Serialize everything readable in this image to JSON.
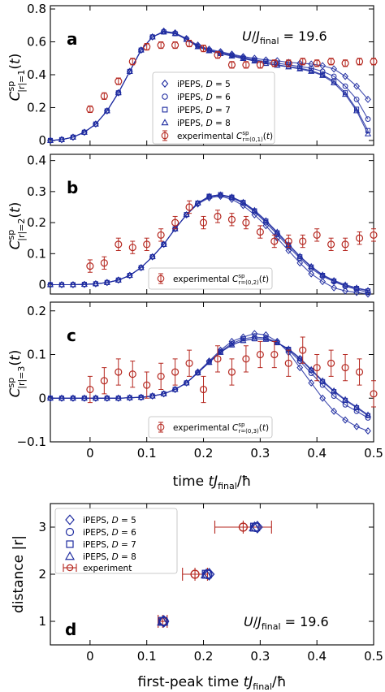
{
  "colors": {
    "ipeps": "#1f2ca0",
    "experiment": "#b5271f"
  },
  "annotation": "U/J_final = 19.6",
  "chart_data": [
    {
      "type": "scatter",
      "panel": "a",
      "ylabel": "C^sp_|r|=1(t)",
      "xlim": [
        -0.07,
        0.5
      ],
      "ylim": [
        -0.03,
        0.82
      ],
      "xticks": [
        0,
        0.1,
        0.2,
        0.3,
        0.4,
        0.5
      ],
      "yticks": [
        0,
        0.2,
        0.4,
        0.6,
        0.8
      ],
      "x_tick_labels_shown": false,
      "legend": [
        "iPEPS, D = 5",
        "iPEPS, D = 6",
        "iPEPS, D = 7",
        "iPEPS, D = 8",
        "experimental C^sp_r=(0,1)(t)"
      ],
      "ipeps": {
        "x": [
          -0.07,
          -0.05,
          -0.03,
          -0.01,
          0.01,
          0.03,
          0.05,
          0.07,
          0.09,
          0.11,
          0.13,
          0.15,
          0.17,
          0.19,
          0.21,
          0.23,
          0.25,
          0.27,
          0.29,
          0.31,
          0.33,
          0.35,
          0.37,
          0.39,
          0.41,
          0.43,
          0.45,
          0.47,
          0.49
        ],
        "D5": [
          0,
          0.005,
          0.02,
          0.05,
          0.1,
          0.18,
          0.29,
          0.42,
          0.55,
          0.63,
          0.665,
          0.655,
          0.62,
          0.58,
          0.555,
          0.54,
          0.525,
          0.51,
          0.5,
          0.49,
          0.485,
          0.475,
          0.47,
          0.465,
          0.455,
          0.435,
          0.39,
          0.33,
          0.25
        ],
        "D6": [
          0,
          0.005,
          0.02,
          0.05,
          0.1,
          0.18,
          0.29,
          0.42,
          0.55,
          0.63,
          0.662,
          0.652,
          0.617,
          0.575,
          0.55,
          0.535,
          0.52,
          0.505,
          0.49,
          0.48,
          0.47,
          0.46,
          0.45,
          0.44,
          0.42,
          0.39,
          0.33,
          0.25,
          0.13
        ],
        "D7": [
          0,
          0.005,
          0.02,
          0.05,
          0.1,
          0.18,
          0.29,
          0.42,
          0.55,
          0.63,
          0.66,
          0.65,
          0.615,
          0.572,
          0.547,
          0.53,
          0.515,
          0.5,
          0.485,
          0.47,
          0.46,
          0.45,
          0.44,
          0.425,
          0.4,
          0.36,
          0.29,
          0.19,
          0.06
        ],
        "D8": [
          0,
          0.005,
          0.02,
          0.05,
          0.1,
          0.18,
          0.29,
          0.42,
          0.55,
          0.63,
          0.66,
          0.65,
          0.615,
          0.57,
          0.545,
          0.528,
          0.513,
          0.498,
          0.483,
          0.468,
          0.457,
          0.447,
          0.435,
          0.42,
          0.395,
          0.35,
          0.28,
          0.18,
          0.04
        ]
      },
      "experiment": {
        "x": [
          0,
          0.025,
          0.05,
          0.075,
          0.1,
          0.125,
          0.15,
          0.175,
          0.2,
          0.225,
          0.25,
          0.275,
          0.3,
          0.325,
          0.35,
          0.375,
          0.4,
          0.425,
          0.45,
          0.475,
          0.5
        ],
        "y": [
          0.19,
          0.27,
          0.36,
          0.48,
          0.57,
          0.58,
          0.58,
          0.59,
          0.56,
          0.52,
          0.46,
          0.46,
          0.46,
          0.47,
          0.47,
          0.48,
          0.47,
          0.48,
          0.47,
          0.48,
          0.48
        ],
        "err": [
          0.02,
          0.02,
          0.02,
          0.02,
          0.02,
          0.02,
          0.02,
          0.02,
          0.02,
          0.02,
          0.02,
          0.02,
          0.02,
          0.02,
          0.02,
          0.02,
          0.02,
          0.02,
          0.02,
          0.02,
          0.02
        ]
      }
    },
    {
      "type": "scatter",
      "panel": "b",
      "ylabel": "C^sp_|r|=2(t)",
      "xlim": [
        -0.07,
        0.5
      ],
      "ylim": [
        -0.03,
        0.42
      ],
      "xticks": [
        0,
        0.1,
        0.2,
        0.3,
        0.4,
        0.5
      ],
      "yticks": [
        0,
        0.1,
        0.2,
        0.3,
        0.4
      ],
      "x_tick_labels_shown": false,
      "legend": [
        "experimental C^sp_r=(0,2)(t)"
      ],
      "ipeps": {
        "x": [
          -0.07,
          -0.05,
          -0.03,
          -0.01,
          0.01,
          0.03,
          0.05,
          0.07,
          0.09,
          0.11,
          0.13,
          0.15,
          0.17,
          0.19,
          0.21,
          0.23,
          0.25,
          0.27,
          0.29,
          0.31,
          0.33,
          0.35,
          0.37,
          0.39,
          0.41,
          0.43,
          0.45,
          0.47,
          0.49
        ],
        "D5": [
          0,
          0,
          0,
          0.001,
          0.003,
          0.007,
          0.015,
          0.03,
          0.055,
          0.09,
          0.13,
          0.18,
          0.225,
          0.26,
          0.28,
          0.285,
          0.275,
          0.255,
          0.225,
          0.19,
          0.15,
          0.11,
          0.07,
          0.035,
          0.01,
          -0.01,
          -0.02,
          -0.025,
          -0.03
        ],
        "D6": [
          0,
          0,
          0,
          0.001,
          0.003,
          0.007,
          0.015,
          0.03,
          0.055,
          0.09,
          0.13,
          0.18,
          0.225,
          0.262,
          0.283,
          0.288,
          0.28,
          0.262,
          0.235,
          0.2,
          0.162,
          0.122,
          0.085,
          0.052,
          0.027,
          0.01,
          -0.005,
          -0.015,
          -0.025
        ],
        "D7": [
          0,
          0,
          0,
          0.001,
          0.003,
          0.007,
          0.015,
          0.03,
          0.055,
          0.09,
          0.13,
          0.18,
          0.226,
          0.263,
          0.285,
          0.29,
          0.282,
          0.265,
          0.238,
          0.205,
          0.167,
          0.128,
          0.09,
          0.057,
          0.03,
          0.012,
          -0.003,
          -0.012,
          -0.02
        ],
        "D8": [
          0,
          0,
          0,
          0.001,
          0.003,
          0.007,
          0.015,
          0.03,
          0.055,
          0.09,
          0.13,
          0.18,
          0.226,
          0.263,
          0.285,
          0.29,
          0.283,
          0.266,
          0.24,
          0.207,
          0.17,
          0.13,
          0.092,
          0.059,
          0.032,
          0.014,
          0,
          -0.01,
          -0.018
        ]
      },
      "experiment": {
        "x": [
          0,
          0.025,
          0.05,
          0.075,
          0.1,
          0.125,
          0.15,
          0.175,
          0.2,
          0.225,
          0.25,
          0.275,
          0.3,
          0.325,
          0.35,
          0.375,
          0.4,
          0.425,
          0.45,
          0.475,
          0.5
        ],
        "y": [
          0.06,
          0.07,
          0.13,
          0.12,
          0.13,
          0.16,
          0.2,
          0.25,
          0.2,
          0.22,
          0.21,
          0.2,
          0.17,
          0.14,
          0.14,
          0.14,
          0.16,
          0.13,
          0.13,
          0.15,
          0.16
        ],
        "err": [
          0.02,
          0.02,
          0.02,
          0.02,
          0.02,
          0.02,
          0.02,
          0.02,
          0.02,
          0.02,
          0.02,
          0.02,
          0.02,
          0.02,
          0.02,
          0.02,
          0.02,
          0.02,
          0.02,
          0.02,
          0.02
        ]
      }
    },
    {
      "type": "scatter",
      "panel": "c",
      "ylabel": "C^sp_|r|=3(t)",
      "xlabel": "time tJ_final/ħ",
      "xlim": [
        -0.07,
        0.5
      ],
      "ylim": [
        -0.1,
        0.22
      ],
      "xticks": [
        0,
        0.1,
        0.2,
        0.3,
        0.4,
        0.5
      ],
      "xtick_labels": [
        "0",
        "0.1",
        "0.2",
        "0.3",
        "0.4",
        "0.5"
      ],
      "yticks": [
        -0.1,
        0,
        0.1,
        0.2
      ],
      "ytick_labels": [
        "−0.1",
        "0",
        "0.1",
        "0.2"
      ],
      "legend": [
        "experimental C^sp_r=(0,3)(t)"
      ],
      "ipeps": {
        "x": [
          -0.07,
          -0.05,
          -0.03,
          -0.01,
          0.01,
          0.03,
          0.05,
          0.07,
          0.09,
          0.11,
          0.13,
          0.15,
          0.17,
          0.19,
          0.21,
          0.23,
          0.25,
          0.27,
          0.29,
          0.31,
          0.33,
          0.35,
          0.37,
          0.39,
          0.41,
          0.43,
          0.45,
          0.47,
          0.49
        ],
        "D5": [
          0,
          0,
          0,
          0,
          0,
          0,
          0,
          0.001,
          0.002,
          0.005,
          0.01,
          0.02,
          0.035,
          0.06,
          0.085,
          0.11,
          0.13,
          0.14,
          0.148,
          0.145,
          0.13,
          0.105,
          0.07,
          0.035,
          0,
          -0.03,
          -0.05,
          -0.065,
          -0.075
        ],
        "D6": [
          0,
          0,
          0,
          0,
          0,
          0,
          0,
          0.001,
          0.002,
          0.005,
          0.01,
          0.02,
          0.035,
          0.058,
          0.083,
          0.107,
          0.125,
          0.136,
          0.14,
          0.138,
          0.128,
          0.11,
          0.085,
          0.057,
          0.03,
          0.005,
          -0.015,
          -0.03,
          -0.045
        ],
        "D7": [
          0,
          0,
          0,
          0,
          0,
          0,
          0,
          0.001,
          0.002,
          0.005,
          0.01,
          0.02,
          0.035,
          0.058,
          0.082,
          0.105,
          0.122,
          0.132,
          0.136,
          0.135,
          0.127,
          0.112,
          0.09,
          0.064,
          0.038,
          0.015,
          -0.005,
          -0.022,
          -0.04
        ],
        "D8": [
          0,
          0,
          0,
          0,
          0,
          0,
          0,
          0.001,
          0.002,
          0.005,
          0.01,
          0.02,
          0.035,
          0.058,
          0.082,
          0.105,
          0.122,
          0.132,
          0.136,
          0.135,
          0.127,
          0.113,
          0.092,
          0.066,
          0.04,
          0.017,
          -0.003,
          -0.02,
          -0.038
        ]
      },
      "experiment": {
        "x": [
          0,
          0.025,
          0.05,
          0.075,
          0.1,
          0.125,
          0.15,
          0.175,
          0.2,
          0.225,
          0.25,
          0.275,
          0.3,
          0.325,
          0.35,
          0.375,
          0.4,
          0.425,
          0.45,
          0.475,
          0.5
        ],
        "y": [
          0.02,
          0.04,
          0.06,
          0.055,
          0.03,
          0.05,
          0.06,
          0.08,
          0.02,
          0.09,
          0.06,
          0.09,
          0.1,
          0.1,
          0.08,
          0.11,
          0.07,
          0.08,
          0.07,
          0.06,
          0.01
        ],
        "err": [
          0.03,
          0.03,
          0.03,
          0.03,
          0.03,
          0.03,
          0.03,
          0.03,
          0.03,
          0.03,
          0.03,
          0.03,
          0.03,
          0.03,
          0.03,
          0.03,
          0.03,
          0.03,
          0.03,
          0.03,
          0.03
        ]
      }
    },
    {
      "type": "scatter",
      "panel": "d",
      "ylabel": "distance |r|",
      "xlabel": "first-peak time tJ_final/ħ",
      "xlim": [
        -0.07,
        0.5
      ],
      "ylim": [
        0.5,
        3.5
      ],
      "xticks": [
        0,
        0.1,
        0.2,
        0.3,
        0.4,
        0.5
      ],
      "xtick_labels": [
        "0",
        "0.1",
        "0.2",
        "0.3",
        "0.4",
        "0.5"
      ],
      "yticks": [
        1,
        2,
        3
      ],
      "ytick_labels": [
        "1",
        "2",
        "3"
      ],
      "legend": [
        "iPEPS, D = 5",
        "iPEPS, D = 6",
        "iPEPS, D = 7",
        "iPEPS, D = 8",
        "experiment"
      ],
      "r": [
        1,
        2,
        3
      ],
      "ipeps": {
        "D5": [
          0.13,
          0.21,
          0.295
        ],
        "D6": [
          0.13,
          0.207,
          0.292
        ],
        "D7": [
          0.128,
          0.205,
          0.29
        ],
        "D8": [
          0.128,
          0.205,
          0.29
        ]
      },
      "experiment": {
        "t": [
          0.128,
          0.185,
          0.27
        ],
        "err": [
          0.008,
          0.022,
          0.05
        ]
      }
    }
  ]
}
